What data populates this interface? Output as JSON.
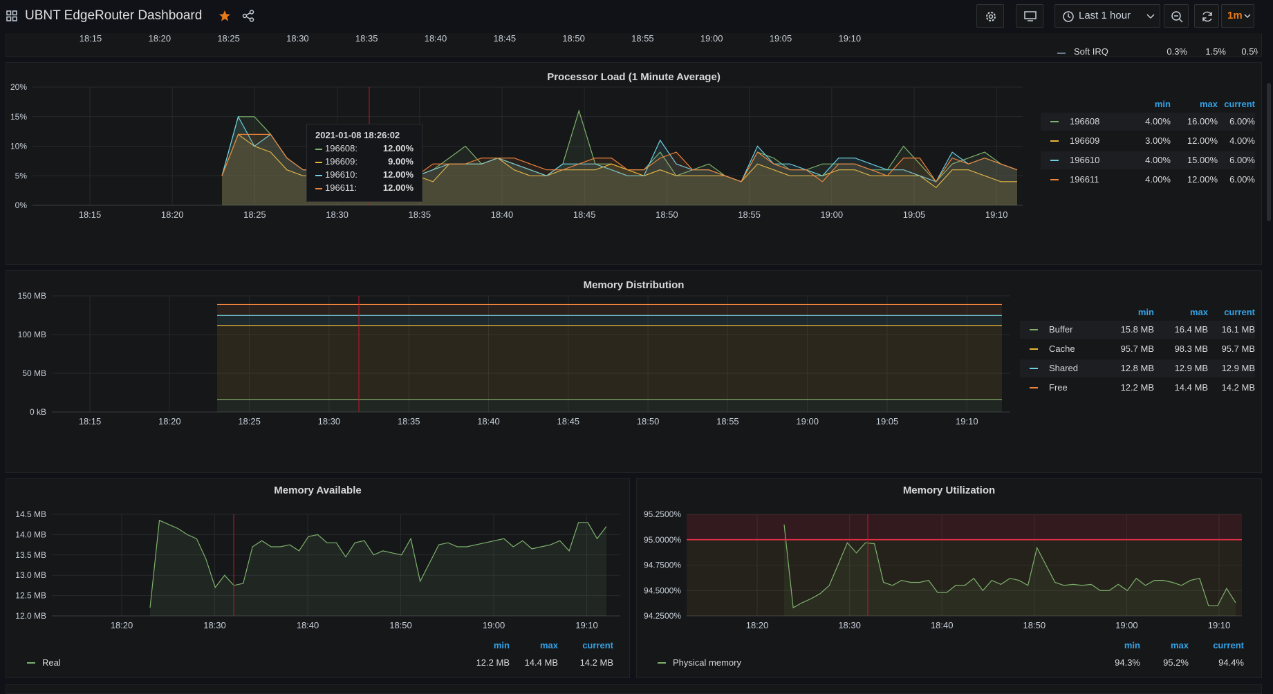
{
  "header": {
    "title": "UBNT EdgeRouter Dashboard",
    "time_range": "Last 1 hour",
    "refresh": "1m"
  },
  "top_strip": {
    "ticks": [
      "18:15",
      "18:20",
      "18:25",
      "18:30",
      "18:35",
      "18:40",
      "18:45",
      "18:50",
      "18:55",
      "19:00",
      "19:05",
      "19:10"
    ],
    "cut_legend": {
      "name": "Soft IRQ",
      "min": "0.3%",
      "max": "1.5%",
      "current": "0.5%"
    }
  },
  "cpu": {
    "title": "Processor Load (1 Minute Average)",
    "y_ticks": [
      "0%",
      "5%",
      "10%",
      "15%",
      "20%"
    ],
    "x_ticks": [
      "18:15",
      "18:20",
      "18:25",
      "18:30",
      "18:35",
      "18:40",
      "18:45",
      "18:50",
      "18:55",
      "19:00",
      "19:05",
      "19:10"
    ],
    "legend_headers": {
      "min": "min",
      "max": "max",
      "current": "current"
    },
    "legend": [
      {
        "name": "196608",
        "min": "4.00%",
        "max": "16.00%",
        "current": "6.00%",
        "color": "#7eb26d"
      },
      {
        "name": "196609",
        "min": "3.00%",
        "max": "12.00%",
        "current": "4.00%",
        "color": "#eab839"
      },
      {
        "name": "196610",
        "min": "4.00%",
        "max": "15.00%",
        "current": "6.00%",
        "color": "#6ed0e0"
      },
      {
        "name": "196611",
        "min": "4.00%",
        "max": "12.00%",
        "current": "6.00%",
        "color": "#ef843c"
      }
    ],
    "tooltip": {
      "time": "2021-01-08 18:26:02",
      "rows": [
        {
          "name": "196608:",
          "value": "12.00%",
          "color": "#7eb26d"
        },
        {
          "name": "196609:",
          "value": "9.00%",
          "color": "#eab839"
        },
        {
          "name": "196610:",
          "value": "12.00%",
          "color": "#6ed0e0"
        },
        {
          "name": "196611:",
          "value": "12.00%",
          "color": "#ef843c"
        }
      ]
    }
  },
  "memdist": {
    "title": "Memory Distribution",
    "y_ticks": [
      "0 kB",
      "50 MB",
      "100 MB",
      "150 MB"
    ],
    "x_ticks": [
      "18:15",
      "18:20",
      "18:25",
      "18:30",
      "18:35",
      "18:40",
      "18:45",
      "18:50",
      "18:55",
      "19:00",
      "19:05",
      "19:10"
    ],
    "legend_headers": {
      "min": "min",
      "max": "max",
      "current": "current"
    },
    "legend": [
      {
        "name": "Buffer",
        "min": "15.8 MB",
        "max": "16.4 MB",
        "current": "16.1 MB",
        "color": "#7eb26d"
      },
      {
        "name": "Cache",
        "min": "95.7 MB",
        "max": "98.3 MB",
        "current": "95.7 MB",
        "color": "#eab839"
      },
      {
        "name": "Shared",
        "min": "12.8 MB",
        "max": "12.9 MB",
        "current": "12.9 MB",
        "color": "#6ed0e0"
      },
      {
        "name": "Free",
        "min": "12.2 MB",
        "max": "14.4 MB",
        "current": "14.2 MB",
        "color": "#ef843c"
      }
    ]
  },
  "memavail": {
    "title": "Memory Available",
    "y_ticks": [
      "12.0 MB",
      "12.5 MB",
      "13.0 MB",
      "13.5 MB",
      "14.0 MB",
      "14.5 MB"
    ],
    "x_ticks": [
      "18:20",
      "18:30",
      "18:40",
      "18:50",
      "19:00",
      "19:10"
    ],
    "legend_headers": {
      "min": "min",
      "max": "max",
      "current": "current"
    },
    "legend": [
      {
        "name": "Real",
        "min": "12.2 MB",
        "max": "14.4 MB",
        "current": "14.2 MB",
        "color": "#7eb26d"
      }
    ]
  },
  "memutil": {
    "title": "Memory Utilization",
    "y_ticks": [
      "94.2500%",
      "94.5000%",
      "94.7500%",
      "95.0000%",
      "95.2500%"
    ],
    "x_ticks": [
      "18:20",
      "18:30",
      "18:40",
      "18:50",
      "19:00",
      "19:10"
    ],
    "threshold": 95.0,
    "legend_headers": {
      "min": "min",
      "max": "max",
      "current": "current"
    },
    "legend": [
      {
        "name": "Physical memory",
        "min": "94.3%",
        "max": "95.2%",
        "current": "94.4%",
        "color": "#7eb26d"
      }
    ]
  },
  "chart_data": [
    {
      "type": "area",
      "title": "Processor Load (1 Minute Average)",
      "x": [
        "18:23",
        "18:24",
        "18:25",
        "18:26",
        "18:27",
        "18:28",
        "18:29",
        "18:30",
        "18:31",
        "18:32",
        "18:33",
        "18:34",
        "18:35",
        "18:36",
        "18:37",
        "18:38",
        "18:39",
        "18:40",
        "18:41",
        "18:42",
        "18:43",
        "18:44",
        "18:45",
        "18:46",
        "18:47",
        "18:48",
        "18:49",
        "18:50",
        "18:51",
        "18:52",
        "18:53",
        "18:54",
        "18:55",
        "18:56",
        "18:57",
        "18:58",
        "18:59",
        "19:00",
        "19:01",
        "19:02",
        "19:03",
        "19:04",
        "19:05",
        "19:06",
        "19:07",
        "19:08",
        "19:09",
        "19:10",
        "19:11",
        "19:12"
      ],
      "ylim": [
        0,
        20
      ],
      "series": [
        {
          "name": "196608",
          "values": [
            5,
            15,
            15,
            12,
            8,
            6,
            6,
            7,
            6,
            5,
            8,
            6,
            5,
            6,
            8,
            10,
            7,
            8,
            7,
            6,
            5,
            7,
            16,
            7,
            7,
            6,
            6,
            9,
            5,
            6,
            7,
            5,
            4,
            9,
            8,
            6,
            6,
            7,
            7,
            7,
            6,
            6,
            10,
            7,
            4,
            7,
            8,
            9,
            7,
            6
          ]
        },
        {
          "name": "196609",
          "values": [
            5,
            12,
            10,
            9,
            6,
            5,
            5,
            6,
            6,
            5,
            6,
            5,
            5,
            4,
            7,
            7,
            7,
            8,
            6,
            5,
            5,
            6,
            6,
            6,
            7,
            6,
            5,
            6,
            5,
            5,
            5,
            5,
            4,
            7,
            6,
            5,
            5,
            5,
            6,
            6,
            5,
            5,
            5,
            5,
            3,
            6,
            6,
            5,
            4,
            4
          ]
        },
        {
          "name": "196610",
          "values": [
            5,
            15,
            10,
            12,
            8,
            6,
            6,
            6,
            6,
            5,
            8,
            5,
            5,
            6,
            7,
            7,
            7,
            8,
            7,
            6,
            5,
            7,
            7,
            7,
            6,
            5,
            5,
            11,
            7,
            6,
            6,
            5,
            4,
            10,
            7,
            7,
            6,
            5,
            8,
            8,
            7,
            6,
            6,
            5,
            4,
            9,
            7,
            8,
            7,
            6
          ]
        },
        {
          "name": "196611",
          "values": [
            5,
            12,
            12,
            12,
            8,
            6,
            6,
            6,
            6,
            5,
            6,
            5,
            5,
            7,
            7,
            7,
            8,
            8,
            8,
            7,
            6,
            6,
            7,
            8,
            8,
            6,
            6,
            8,
            9,
            6,
            6,
            5,
            4,
            9,
            7,
            6,
            6,
            4,
            7,
            7,
            6,
            5,
            8,
            8,
            4,
            8,
            7,
            8,
            7,
            6
          ]
        }
      ]
    },
    {
      "type": "area",
      "title": "Memory Distribution",
      "x_range": [
        "18:23",
        "19:12"
      ],
      "ylim": [
        0,
        150
      ],
      "series": [
        {
          "name": "Buffer",
          "values": [
            16.1,
            16.1
          ]
        },
        {
          "name": "Cache",
          "values": [
            95.7,
            95.7
          ]
        },
        {
          "name": "Shared",
          "values": [
            12.9,
            12.9
          ]
        },
        {
          "name": "Free",
          "values": [
            14.2,
            14.2
          ]
        }
      ]
    },
    {
      "type": "area",
      "title": "Memory Available",
      "ylim": [
        12.0,
        14.5
      ],
      "series": [
        {
          "name": "Real",
          "values": [
            12.2,
            14.35,
            14.25,
            14.15,
            14.0,
            13.9,
            13.4,
            12.7,
            13.0,
            12.75,
            12.8,
            13.7,
            13.85,
            13.7,
            13.7,
            13.75,
            13.6,
            13.95,
            14.0,
            13.8,
            13.8,
            13.45,
            13.8,
            13.85,
            13.5,
            13.6,
            13.55,
            13.5,
            13.9,
            12.85,
            13.3,
            13.75,
            13.8,
            13.7,
            13.7,
            13.75,
            13.8,
            13.85,
            13.9,
            13.7,
            13.85,
            13.65,
            13.7,
            13.75,
            13.85,
            13.6,
            14.3,
            14.3,
            13.9,
            14.2
          ]
        }
      ]
    },
    {
      "type": "area",
      "title": "Memory Utilization",
      "ylim": [
        94.25,
        95.25
      ],
      "series": [
        {
          "name": "Physical memory",
          "values": [
            95.15,
            94.33,
            94.38,
            94.42,
            94.47,
            94.55,
            94.76,
            94.97,
            94.87,
            94.97,
            94.96,
            94.58,
            94.55,
            94.6,
            94.58,
            94.58,
            94.6,
            94.48,
            94.48,
            94.55,
            94.55,
            94.62,
            94.5,
            94.6,
            94.56,
            94.62,
            94.6,
            94.55,
            94.92,
            94.75,
            94.58,
            94.55,
            94.56,
            94.55,
            94.56,
            94.5,
            94.5,
            94.56,
            94.5,
            94.62,
            94.55,
            94.6,
            94.6,
            94.58,
            94.55,
            94.6,
            94.62,
            94.35,
            94.35,
            94.52,
            94.38
          ]
        }
      ]
    }
  ]
}
